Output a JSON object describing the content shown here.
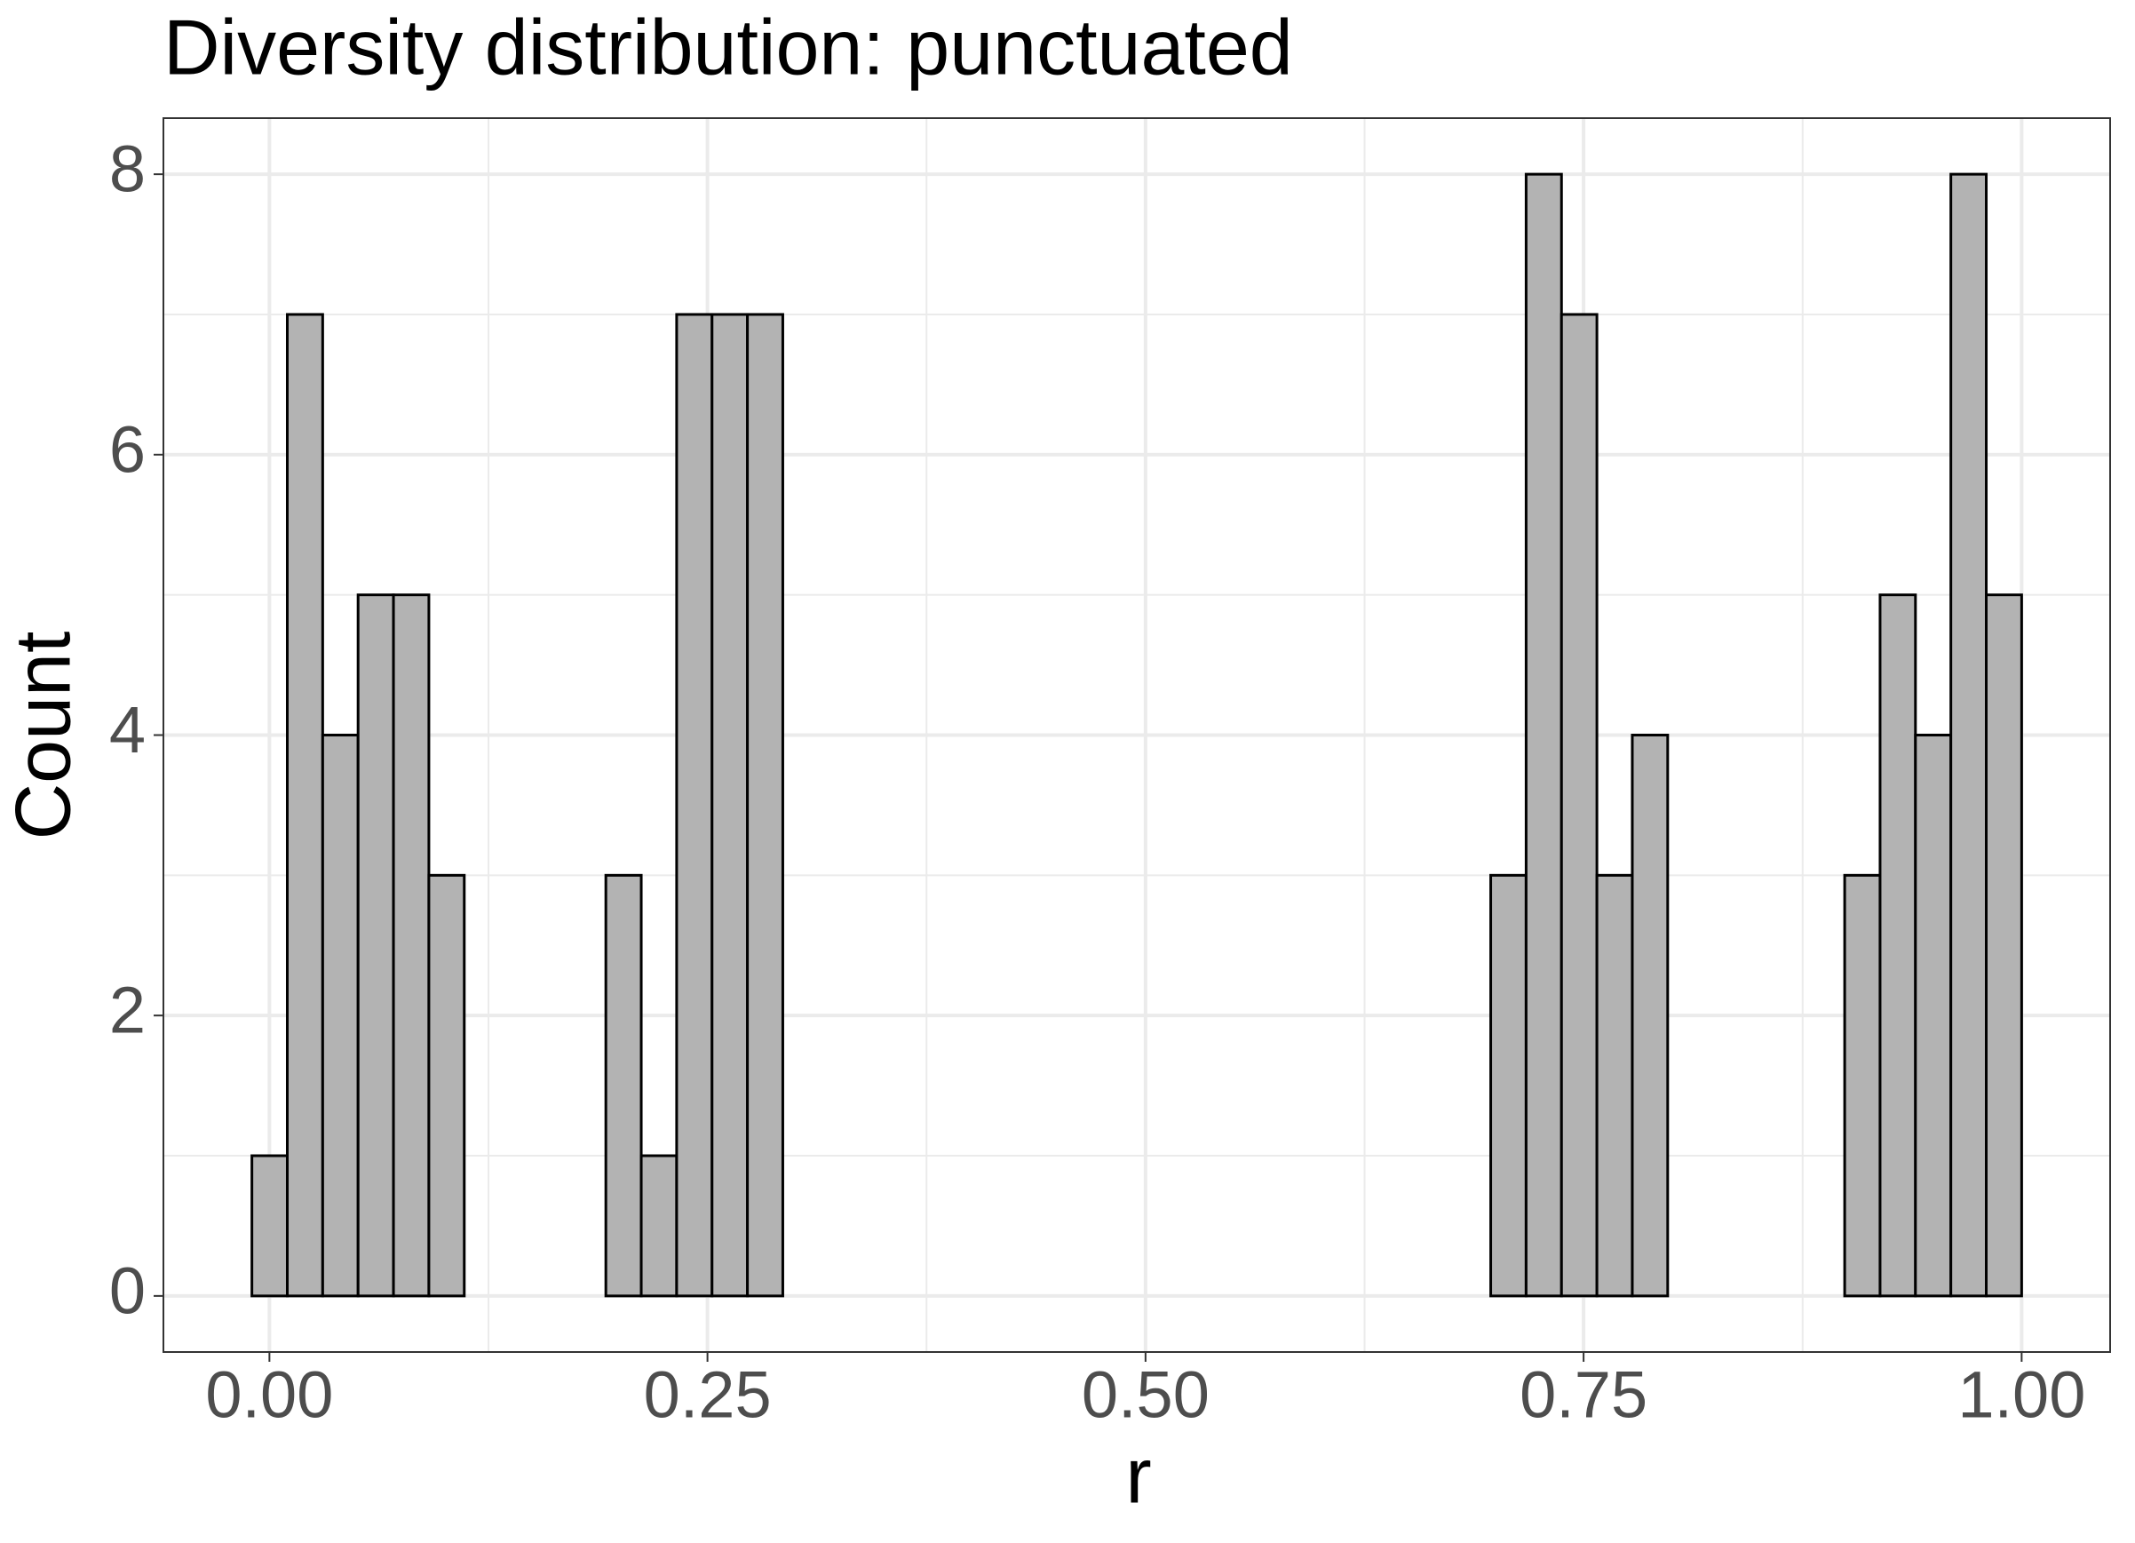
{
  "chart_data": {
    "type": "histogram",
    "title": "Diversity distribution: punctuated",
    "xlabel": "r",
    "ylabel": "Count",
    "bins": [
      -0.01,
      0.0102,
      0.0304,
      0.0506,
      0.0708,
      0.091,
      0.1112,
      0.1314,
      0.1516,
      0.1718,
      0.192,
      0.2122,
      0.2324,
      0.2526,
      0.2728,
      0.293,
      0.3132,
      0.3334,
      0.3536,
      0.3738,
      0.394,
      0.4142,
      0.4344,
      0.4546,
      0.4748,
      0.495,
      0.5152,
      0.5354,
      0.5556,
      0.5758,
      0.596,
      0.6162,
      0.6364,
      0.6566,
      0.6768,
      0.697,
      0.7172,
      0.7374,
      0.7576,
      0.7778,
      0.798,
      0.8182,
      0.8384,
      0.8586,
      0.8788,
      0.899,
      0.9192,
      0.9394,
      0.9596,
      0.9798,
      1.0
    ],
    "values": [
      1,
      7,
      4,
      5,
      5,
      3,
      0,
      0,
      0,
      0,
      3,
      1,
      7,
      7,
      7,
      0,
      0,
      0,
      0,
      0,
      0,
      0,
      0,
      0,
      0,
      0,
      0,
      0,
      0,
      0,
      0,
      0,
      0,
      0,
      0,
      3,
      8,
      7,
      3,
      4,
      0,
      0,
      0,
      0,
      0,
      3,
      5,
      4,
      8,
      5
    ],
    "color": "#b3b3b3",
    "edgecolor": "#000000",
    "xlim": [
      -0.0605,
      1.0505
    ],
    "xticks": [
      {
        "value": 0,
        "label": "0.00"
      },
      {
        "value": 0.25,
        "label": "0.25"
      },
      {
        "value": 0.5,
        "label": "0.50"
      },
      {
        "value": 0.75,
        "label": "0.75"
      },
      {
        "value": 1,
        "label": "1.00"
      }
    ],
    "xminor": [
      0.125,
      0.375,
      0.625,
      0.875
    ],
    "ylim": [
      -0.4,
      8.4
    ],
    "yticks": [
      0,
      2,
      4,
      6,
      8
    ],
    "yminor": [
      1,
      3,
      5,
      7
    ],
    "grid": true
  }
}
